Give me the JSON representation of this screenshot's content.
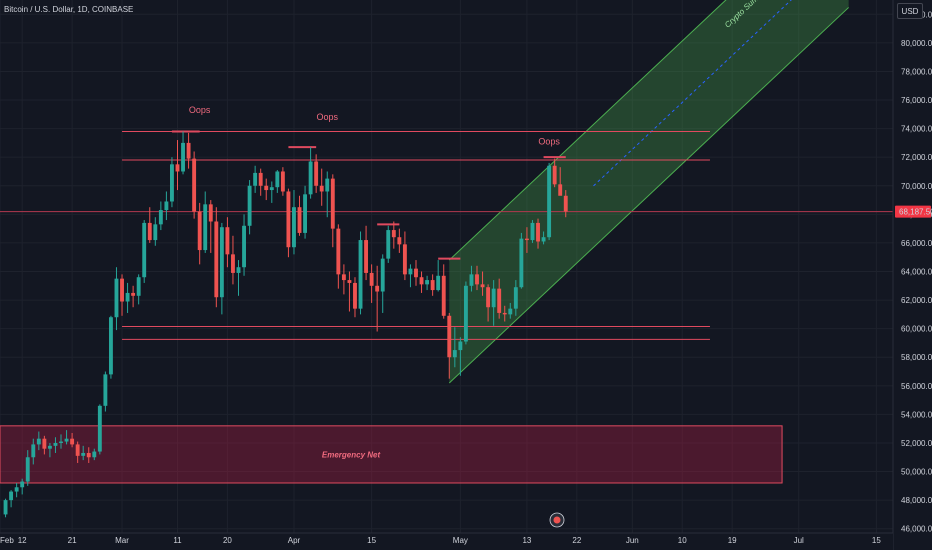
{
  "legend": {
    "title": "Bitcoin / U.S. Dollar, 1D, COINBASE"
  },
  "currency_button": "USD",
  "colors": {
    "background": "#131722",
    "up": "#26a69a",
    "down": "#ef5350",
    "level": "#e04a5f",
    "channel": "#4caf50",
    "grid": "#1e222d",
    "axis": "#d1d4dc"
  },
  "chart_data": {
    "type": "candlestick",
    "ylim": [
      45700,
      83000
    ],
    "y_ticks": [
      "82,000.00",
      "80,000.00",
      "78,000.00",
      "76,000.00",
      "74,000.00",
      "72,000.00",
      "70,000.00",
      "68,000.00",
      "66,000.00",
      "64,000.00",
      "62,000.00",
      "60,000.00",
      "58,000.00",
      "56,000.00",
      "54,000.00",
      "52,000.00",
      "50,000.00",
      "48,000.00",
      "46,000.00"
    ],
    "y_tick_values": [
      82000,
      80000,
      78000,
      76000,
      74000,
      72000,
      70000,
      68000,
      66000,
      64000,
      62000,
      60000,
      58000,
      56000,
      54000,
      52000,
      50000,
      48000,
      46000
    ],
    "x_ticks": [
      {
        "label": "Feb",
        "day": -1
      },
      {
        "label": "12",
        "day": 3
      },
      {
        "label": "21",
        "day": 12
      },
      {
        "label": "Mar",
        "day": 21
      },
      {
        "label": "11",
        "day": 31
      },
      {
        "label": "20",
        "day": 40
      },
      {
        "label": "Apr",
        "day": 52
      },
      {
        "label": "15",
        "day": 66
      },
      {
        "label": "May",
        "day": 82
      },
      {
        "label": "13",
        "day": 94
      },
      {
        "label": "22",
        "day": 103
      },
      {
        "label": "Jun",
        "day": 113
      },
      {
        "label": "10",
        "day": 122
      },
      {
        "label": "19",
        "day": 131
      },
      {
        "label": "Jul",
        "day": 143
      },
      {
        "label": "15",
        "day": 157
      }
    ],
    "last_price": "68,187.50",
    "last_price_value": 68187.5,
    "candles": [
      [
        0,
        47000,
        48100,
        46800,
        48000
      ],
      [
        1,
        48000,
        48700,
        47500,
        48600
      ],
      [
        2,
        48600,
        49200,
        48200,
        48900
      ],
      [
        3,
        48900,
        49500,
        48400,
        49300
      ],
      [
        4,
        49300,
        51500,
        49000,
        51000
      ],
      [
        5,
        51000,
        52300,
        50500,
        51900
      ],
      [
        6,
        51900,
        52800,
        51500,
        52300
      ],
      [
        7,
        52300,
        52500,
        51200,
        51600
      ],
      [
        8,
        51600,
        52000,
        51000,
        51800
      ],
      [
        9,
        51800,
        52400,
        51300,
        52000
      ],
      [
        10,
        52000,
        52600,
        51600,
        52100
      ],
      [
        11,
        52100,
        52900,
        51900,
        52300
      ],
      [
        12,
        52300,
        52700,
        51700,
        51900
      ],
      [
        13,
        51900,
        52100,
        50600,
        51100
      ],
      [
        14,
        51100,
        51800,
        50800,
        51300
      ],
      [
        15,
        51300,
        51700,
        50600,
        51000
      ],
      [
        16,
        51000,
        51600,
        50800,
        51400
      ],
      [
        17,
        51400,
        54700,
        51200,
        54600
      ],
      [
        18,
        54600,
        57000,
        54200,
        56800
      ],
      [
        19,
        56800,
        60900,
        56500,
        60800
      ],
      [
        20,
        60800,
        64300,
        59900,
        63500
      ],
      [
        21,
        63500,
        63800,
        60900,
        61900
      ],
      [
        22,
        61900,
        63200,
        61100,
        62500
      ],
      [
        23,
        62500,
        63000,
        61500,
        62300
      ],
      [
        24,
        62300,
        63800,
        61700,
        63600
      ],
      [
        25,
        63600,
        67600,
        63200,
        67400
      ],
      [
        26,
        67400,
        68500,
        66000,
        66200
      ],
      [
        27,
        66200,
        67800,
        65800,
        67300
      ],
      [
        28,
        67300,
        68900,
        66900,
        68300
      ],
      [
        29,
        68300,
        69600,
        67600,
        68900
      ],
      [
        30,
        68900,
        72000,
        68500,
        71500
      ],
      [
        31,
        71500,
        73200,
        69700,
        71000
      ],
      [
        32,
        71000,
        73800,
        70800,
        73000
      ],
      [
        33,
        73000,
        73700,
        71200,
        71900
      ],
      [
        34,
        71900,
        72400,
        67700,
        68200
      ],
      [
        35,
        68200,
        68800,
        64500,
        65500
      ],
      [
        36,
        65500,
        69600,
        65300,
        68700
      ],
      [
        37,
        68700,
        69000,
        65300,
        67500
      ],
      [
        38,
        67500,
        68500,
        61500,
        62200
      ],
      [
        39,
        62200,
        67400,
        61000,
        67100
      ],
      [
        40,
        67100,
        67800,
        64300,
        65200
      ],
      [
        41,
        65200,
        66500,
        63100,
        63900
      ],
      [
        42,
        63900,
        64800,
        62300,
        64300
      ],
      [
        43,
        64300,
        68000,
        63700,
        67200
      ],
      [
        44,
        67200,
        70400,
        66600,
        70000
      ],
      [
        45,
        70000,
        71400,
        69500,
        70900
      ],
      [
        46,
        70900,
        71200,
        69300,
        70000
      ],
      [
        47,
        70000,
        70500,
        69000,
        69700
      ],
      [
        48,
        69700,
        70300,
        68800,
        69900
      ],
      [
        49,
        69900,
        71100,
        69500,
        71000
      ],
      [
        50,
        71000,
        71300,
        69300,
        69600
      ],
      [
        51,
        69600,
        69800,
        65000,
        65700
      ],
      [
        52,
        65700,
        69700,
        65200,
        68500
      ],
      [
        53,
        68500,
        69300,
        66500,
        66700
      ],
      [
        54,
        66700,
        70000,
        66300,
        69400
      ],
      [
        55,
        69400,
        72700,
        69100,
        71700
      ],
      [
        56,
        71700,
        72200,
        69500,
        70000
      ],
      [
        57,
        70000,
        71200,
        68600,
        69600
      ],
      [
        58,
        69600,
        71000,
        67800,
        70500
      ],
      [
        59,
        70500,
        70800,
        65700,
        67000
      ],
      [
        60,
        67000,
        67300,
        62800,
        63800
      ],
      [
        61,
        63800,
        64500,
        62400,
        63400
      ],
      [
        62,
        63400,
        64000,
        61200,
        63200
      ],
      [
        63,
        63200,
        63600,
        60800,
        61400
      ],
      [
        64,
        61400,
        66800,
        61000,
        66200
      ],
      [
        65,
        66200,
        67200,
        63400,
        63900
      ],
      [
        66,
        63900,
        64500,
        61800,
        63000
      ],
      [
        67,
        63000,
        64400,
        59800,
        62600
      ],
      [
        68,
        62600,
        65200,
        61100,
        64900
      ],
      [
        69,
        64900,
        67200,
        64600,
        66900
      ],
      [
        70,
        66900,
        67500,
        65600,
        66400
      ],
      [
        71,
        66400,
        67000,
        65300,
        65900
      ],
      [
        72,
        65900,
        66800,
        63400,
        63800
      ],
      [
        73,
        63800,
        64500,
        62900,
        64200
      ],
      [
        74,
        64200,
        64800,
        63000,
        63600
      ],
      [
        75,
        63600,
        64000,
        62500,
        63100
      ],
      [
        76,
        63100,
        63700,
        62700,
        63400
      ],
      [
        77,
        63400,
        63800,
        62300,
        62700
      ],
      [
        78,
        62700,
        64800,
        62600,
        63700
      ],
      [
        79,
        63700,
        64500,
        60700,
        60900
      ],
      [
        80,
        60900,
        61100,
        56500,
        58000
      ],
      [
        81,
        58000,
        60100,
        57300,
        58500
      ],
      [
        82,
        58500,
        59400,
        56700,
        59100
      ],
      [
        83,
        59100,
        63300,
        58900,
        63000
      ],
      [
        84,
        63000,
        64400,
        62600,
        63800
      ],
      [
        85,
        63800,
        64400,
        62700,
        63100
      ],
      [
        86,
        63100,
        64000,
        62300,
        62900
      ],
      [
        87,
        62900,
        63100,
        60500,
        61500
      ],
      [
        88,
        61500,
        63400,
        60200,
        62800
      ],
      [
        89,
        62800,
        63500,
        60700,
        61100
      ],
      [
        90,
        61100,
        61600,
        60500,
        61000
      ],
      [
        91,
        61000,
        61800,
        60700,
        61400
      ],
      [
        92,
        61400,
        63400,
        60900,
        62900
      ],
      [
        93,
        62900,
        66700,
        62800,
        66300
      ],
      [
        94,
        66300,
        67100,
        65300,
        66200
      ],
      [
        95,
        66200,
        67600,
        66000,
        67400
      ],
      [
        96,
        67400,
        67700,
        65600,
        66100
      ],
      [
        97,
        66100,
        66800,
        65900,
        66400
      ],
      [
        98,
        66400,
        71600,
        66200,
        71400
      ],
      [
        99,
        71400,
        71900,
        69900,
        70100
      ],
      [
        100,
        70100,
        71300,
        69500,
        69300
      ],
      [
        101,
        69300,
        69700,
        67800,
        68200
      ]
    ],
    "levels": [
      {
        "y": 73800,
        "from_day": 21,
        "to_day": 127
      },
      {
        "y": 71800,
        "from_day": 21,
        "to_day": 127
      },
      {
        "y": 60150,
        "from_day": 21,
        "to_day": 127
      },
      {
        "y": 59250,
        "from_day": 21,
        "to_day": 127
      }
    ],
    "price_line_y": 68187.5,
    "tops": [
      {
        "y": 73800,
        "from_day": 30,
        "to_day": 35
      },
      {
        "y": 72700,
        "from_day": 51,
        "to_day": 56
      },
      {
        "y": 67300,
        "from_day": 67,
        "to_day": 71
      },
      {
        "y": 64900,
        "from_day": 78,
        "to_day": 82
      },
      {
        "y": 72000,
        "from_day": 97,
        "to_day": 101
      }
    ],
    "channel": {
      "lower_start": [
        80,
        56200
      ],
      "upper_start": [
        80,
        64800
      ],
      "end_day": 152,
      "slope_per_day": 365
    },
    "zone": {
      "from_day": -1,
      "to_day": 140,
      "y_top": 53200,
      "y_bottom": 49200
    },
    "annotations": [
      {
        "text": "Oops",
        "day": 35,
        "y": 75100
      },
      {
        "text": "Oops",
        "day": 58,
        "y": 74600
      },
      {
        "text": "Oops",
        "day": 98,
        "y": 72900
      }
    ],
    "channel_label": "Crypto Summer Channel",
    "zone_label": "Emergency Net",
    "visible_days": [
      -1,
      160
    ]
  }
}
